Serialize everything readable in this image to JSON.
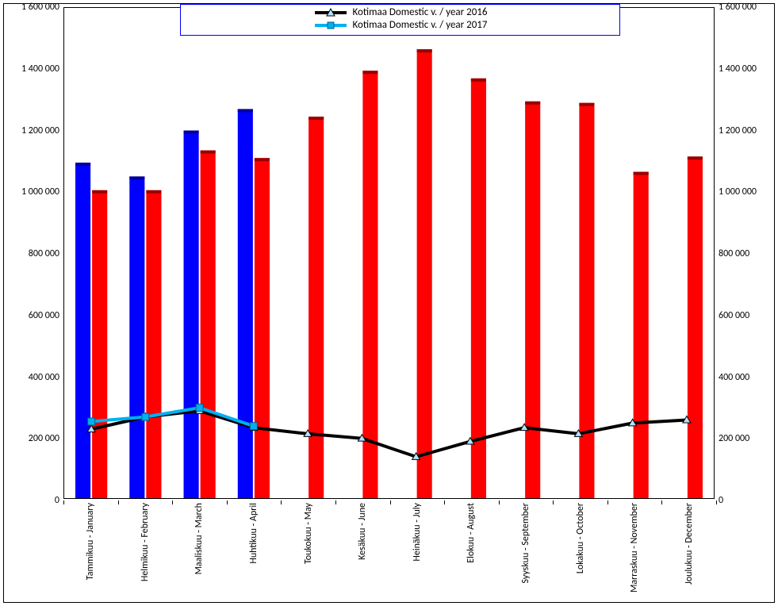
{
  "chart": {
    "type": "bar+line",
    "background_color": "#ffffff",
    "grid_color": "#000000",
    "ylim": [
      0,
      1600000
    ],
    "ytick_step": 200000,
    "y_ticks": [
      "0",
      "200 000",
      "400 000",
      "600 000",
      "800 000",
      "1 000 000",
      "1 200 000",
      "1 400 000",
      "1 600 000"
    ],
    "categories": [
      "Tammikuu - January",
      "Helmikuu - February",
      "Maaliskuu - March",
      "Huhtikuu - April",
      "Toukokuu - May",
      "Kesäkuu - June",
      "Heinäkuu - July",
      "Elokuu - August",
      "Syyskuu - September",
      "Lokakuu - October",
      "Marraskuu - November",
      "Joulukuu - December"
    ],
    "bars_blue": {
      "color": "#0000ff",
      "cap_color": "#000099",
      "values": [
        1095000,
        1050000,
        1200000,
        1270000,
        null,
        null,
        null,
        null,
        null,
        null,
        null,
        null
      ]
    },
    "bars_red": {
      "color": "#ff0000",
      "cap_color": "#990000",
      "values": [
        1005000,
        1005000,
        1135000,
        1110000,
        1245000,
        1395000,
        1465000,
        1370000,
        1295000,
        1290000,
        1065000,
        1115000
      ]
    },
    "line_black": {
      "color": "#000000",
      "width": 4,
      "marker": "triangle",
      "marker_fill": "#b3e2ff",
      "marker_stroke": "#000000",
      "values": [
        225000,
        265000,
        285000,
        230000,
        210000,
        195000,
        135000,
        185000,
        230000,
        210000,
        245000,
        255000
      ]
    },
    "line_cyan": {
      "color": "#00b0f0",
      "width": 4,
      "marker": "square",
      "marker_fill": "#00b0f0",
      "marker_stroke": "#006080",
      "values": [
        250000,
        265000,
        295000,
        235000,
        null,
        null,
        null,
        null,
        null,
        null,
        null,
        null
      ]
    },
    "legend": {
      "border_color": "#0000ff",
      "entries": [
        {
          "key": "line_black",
          "label": "Kotimaa Domestic v. / year 2016"
        },
        {
          "key": "line_cyan",
          "label": "Kotimaa Domestic v. / year 2017"
        }
      ]
    },
    "label_fontsize": 12,
    "bar_width": 0.28
  }
}
